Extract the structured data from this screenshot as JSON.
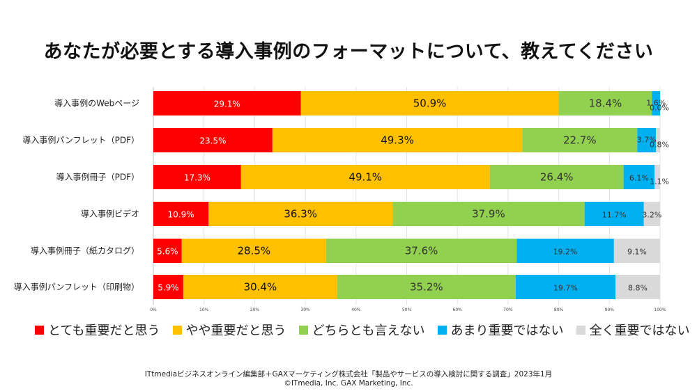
{
  "chart_data": {
    "type": "bar",
    "orientation": "horizontal",
    "stacked": true,
    "title": "あなたが必要とする導入事例のフォーマットについて、教えてください",
    "categories": [
      "導入事例のWebページ",
      "導入事例パンフレット（PDF）",
      "導入事例冊子（PDF）",
      "導入事例ビデオ",
      "導入事例冊子（紙カタログ）",
      "導入事例パンフレット（印刷物）"
    ],
    "series": [
      {
        "name": "とても重要だと思う",
        "color": "#ff0000",
        "values": [
          29.1,
          23.5,
          17.3,
          10.9,
          5.6,
          5.9
        ]
      },
      {
        "name": "やや重要だと思う",
        "color": "#ffc000",
        "values": [
          50.9,
          49.3,
          49.1,
          36.3,
          28.5,
          30.4
        ]
      },
      {
        "name": "どちらとも言えない",
        "color": "#92d050",
        "values": [
          18.4,
          22.7,
          26.4,
          37.9,
          37.6,
          35.2
        ]
      },
      {
        "name": "あまり重要ではない",
        "color": "#00b0f0",
        "values": [
          1.6,
          3.7,
          6.1,
          11.7,
          19.2,
          19.7
        ]
      },
      {
        "name": "全く重要ではない",
        "color": "#d9d9d9",
        "values": [
          0.0,
          0.8,
          1.1,
          3.2,
          9.1,
          8.8
        ]
      }
    ],
    "data_labels": [
      [
        "29.1%",
        "50.9%",
        "18.4%",
        "1.6%",
        "0.0%"
      ],
      [
        "23.5%",
        "49.3%",
        "22.7%",
        "3.7%",
        "0.8%"
      ],
      [
        "17.3%",
        "49.1%",
        "26.4%",
        "6.1%",
        "1.1%"
      ],
      [
        "10.9%",
        "36.3%",
        "37.9%",
        "11.7%",
        "3.2%"
      ],
      [
        "5.6%",
        "28.5%",
        "37.6%",
        "19.2%",
        "9.1%"
      ],
      [
        "5.9%",
        "30.4%",
        "35.2%",
        "19.7%",
        "8.8%"
      ]
    ],
    "x_ticks": [
      "0%",
      "10%",
      "20%",
      "30%",
      "40%",
      "50%",
      "60%",
      "70%",
      "80%",
      "90%",
      "100%"
    ],
    "xlim": [
      0,
      100
    ],
    "grid": true,
    "legend_position": "bottom"
  },
  "footer": {
    "line1": "ITtmediaビジネスオンライン編集部＋GAXマーケティング株式会社「製品やサービスの導入検討に関する調査」2023年1月",
    "line2": "©ITmedia, Inc. GAX Marketing, Inc."
  }
}
